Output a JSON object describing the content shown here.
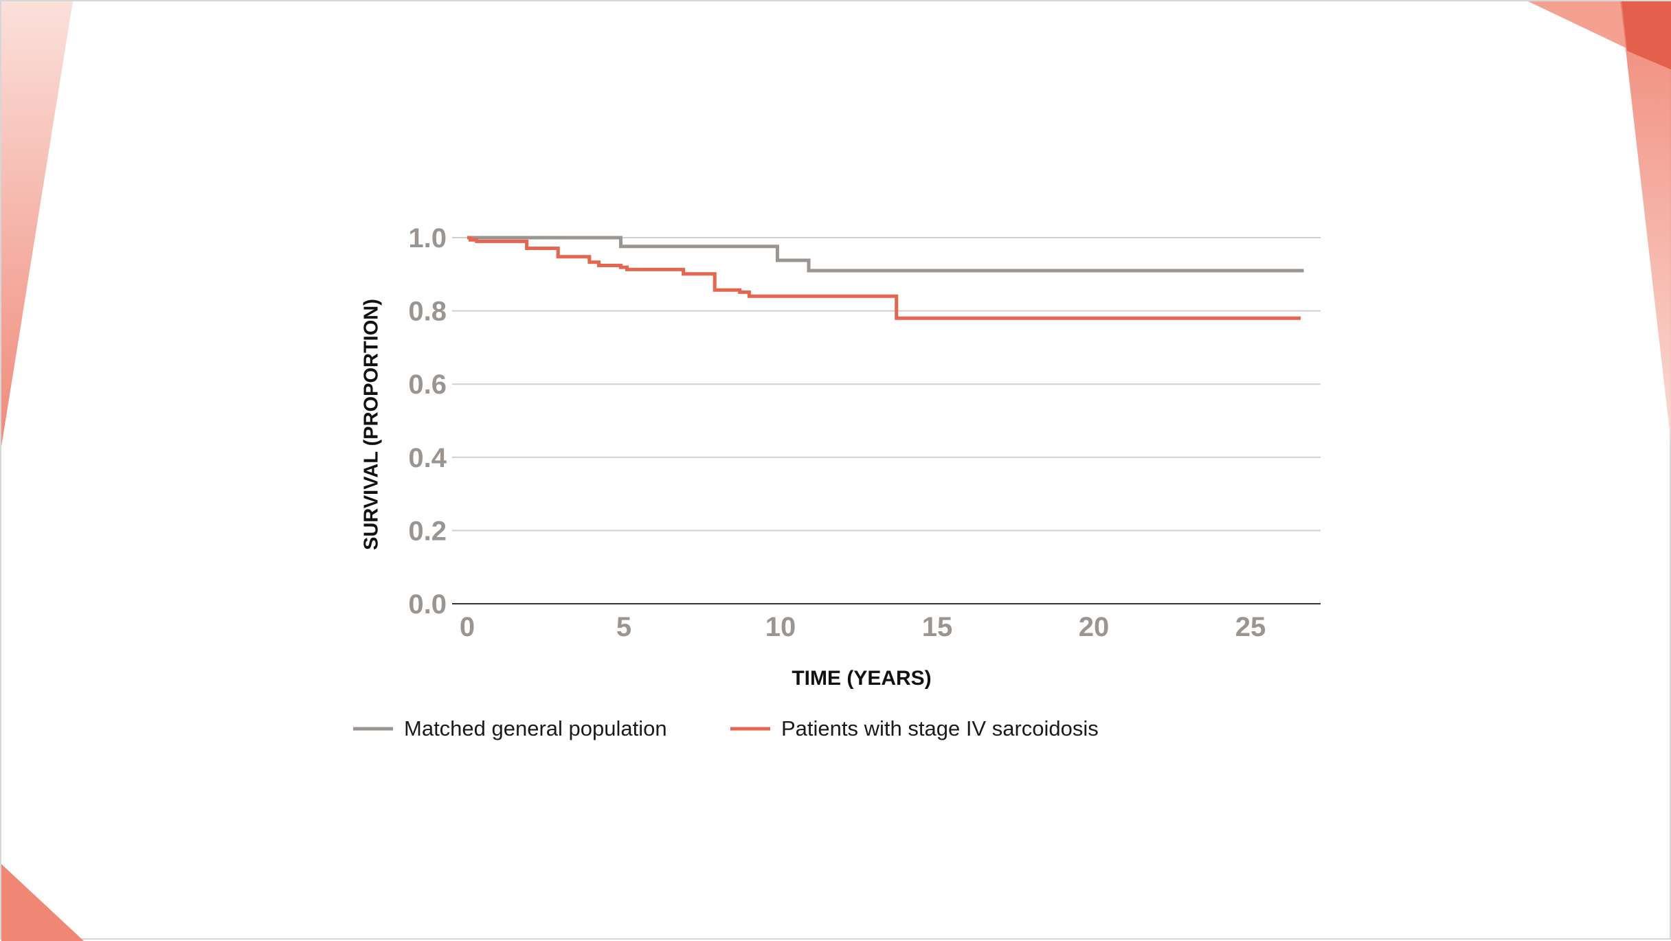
{
  "colors": {
    "general_population": "#9b9591",
    "sarcoidosis": "#e5654f",
    "tick_text": "#9b9591",
    "axis_title": "#111111",
    "gridline": "#cfcfcf",
    "axis_line": "#333333",
    "legend_text": "#1a1a1a"
  },
  "chart_data": {
    "type": "line",
    "subtype": "kaplan-meier step",
    "title": "",
    "xlabel": "TIME (YEARS)",
    "ylabel": "SURVIVAL (PROPORTION)",
    "xlim": [
      0,
      27.5
    ],
    "ylim": [
      0,
      1.0
    ],
    "x_ticks": [
      0,
      5,
      10,
      15,
      20,
      25
    ],
    "y_ticks": [
      0.0,
      0.2,
      0.4,
      0.6,
      0.8,
      1.0
    ],
    "x_tick_labels": [
      "0",
      "5",
      "10",
      "15",
      "20",
      "25"
    ],
    "y_tick_labels": [
      "0.0",
      "0.2",
      "0.4",
      "0.6",
      "0.8",
      "1.0"
    ],
    "grid": true,
    "legend_position": "bottom",
    "series": [
      {
        "name": "Matched general population",
        "color": "#9b9591",
        "x": [
          0,
          4.9,
          9.9,
          10.9,
          26.7
        ],
        "y": [
          1.0,
          0.976,
          0.938,
          0.91,
          0.91
        ]
      },
      {
        "name": "Patients with stage IV sarcoidosis",
        "color": "#e5654f",
        "x": [
          0,
          0.1,
          0.3,
          1.9,
          2.9,
          3.9,
          4.2,
          4.9,
          5.1,
          6.9,
          7.9,
          8.7,
          9.0,
          13.7,
          26.6
        ],
        "y": [
          1.0,
          0.994,
          0.99,
          0.971,
          0.948,
          0.933,
          0.924,
          0.919,
          0.913,
          0.901,
          0.857,
          0.851,
          0.84,
          0.78,
          0.78
        ]
      }
    ]
  }
}
